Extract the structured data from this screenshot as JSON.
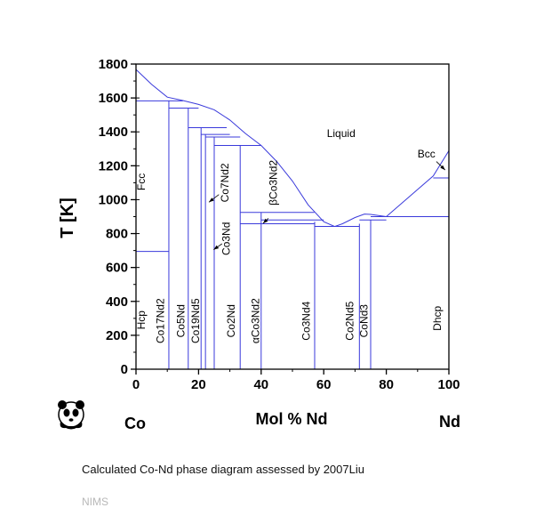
{
  "chart_data": {
    "type": "phase-diagram",
    "title": "",
    "xlabel": "Mol % Nd",
    "ylabel": "T [K]",
    "xlim": [
      0,
      100
    ],
    "ylim": [
      0,
      1800
    ],
    "xticks": [
      "0",
      "20",
      "40",
      "60",
      "80",
      "100"
    ],
    "yticks": [
      "0",
      "200",
      "400",
      "600",
      "800",
      "1000",
      "1200",
      "1400",
      "1600",
      "1800"
    ],
    "left_element": "Co",
    "right_element": "Nd",
    "liquidus": [
      [
        0,
        1768
      ],
      [
        5,
        1680
      ],
      [
        10,
        1605
      ],
      [
        15,
        1585
      ],
      [
        20,
        1562
      ],
      [
        25,
        1530
      ],
      [
        30,
        1470
      ],
      [
        35,
        1390
      ],
      [
        40,
        1320
      ],
      [
        45,
        1225
      ],
      [
        50,
        1110
      ],
      [
        55,
        970
      ],
      [
        60,
        870
      ],
      [
        63.5,
        842
      ],
      [
        66,
        858
      ],
      [
        70,
        895
      ],
      [
        73,
        915
      ],
      [
        75,
        913
      ],
      [
        80,
        900
      ],
      [
        85,
        980
      ],
      [
        90,
        1060
      ],
      [
        95,
        1140
      ],
      [
        100,
        1289
      ]
    ],
    "compounds": [
      {
        "name": "Co17Nd2",
        "x": 10.5,
        "top": 1583
      },
      {
        "name": "Co5Nd",
        "x": 16.7,
        "top": 1540
      },
      {
        "name": "Co19Nd5",
        "x": 20.8,
        "top": 1425
      },
      {
        "name": "Co7Nd2",
        "x": 22.2,
        "top": 1385
      },
      {
        "name": "Co3Nd",
        "x": 25,
        "top": 1370
      },
      {
        "name": "Co2Nd",
        "x": 33.3,
        "top": 1320
      },
      {
        "name": "αCo3Nd2",
        "x": 40,
        "top": 925
      },
      {
        "name": "Co3Nd4",
        "x": 57.1,
        "top": 870
      },
      {
        "name": "Co2Nd5",
        "x": 71.4,
        "top": 858
      },
      {
        "name": "CoNd3",
        "x": 75,
        "top": 880
      }
    ],
    "invariants": [
      {
        "T": 1583,
        "from": 0,
        "to": 15
      },
      {
        "T": 1540,
        "from": 10.5,
        "to": 20
      },
      {
        "T": 1425,
        "from": 16.7,
        "to": 29
      },
      {
        "T": 1385,
        "from": 20.8,
        "to": 30
      },
      {
        "T": 1370,
        "from": 22.2,
        "to": 33.3
      },
      {
        "T": 1320,
        "from": 25,
        "to": 40
      },
      {
        "T": 925,
        "from": 33.3,
        "to": 57
      },
      {
        "T": 880,
        "from": 40,
        "to": 60
      },
      {
        "T": 858,
        "from": 33.3,
        "to": 57.1
      },
      {
        "T": 842,
        "from": 57.1,
        "to": 71.4
      },
      {
        "T": 880,
        "from": 71.4,
        "to": 80
      },
      {
        "T": 900,
        "from": 75,
        "to": 100
      },
      {
        "T": 1128,
        "from": 95,
        "to": 100
      },
      {
        "T": 695,
        "from": 0,
        "to": 10.5
      }
    ],
    "phase_labels": [
      {
        "text": "Liquid",
        "x": 61,
        "y": 1370,
        "rotate": false
      },
      {
        "text": "Bcc",
        "x": 90,
        "y": 1250,
        "rotate": false
      },
      {
        "text": "Fcc",
        "x": 2.8,
        "y": 1105,
        "rotate": true
      },
      {
        "text": "Hcp",
        "x": 2.8,
        "y": 290,
        "rotate": true
      },
      {
        "text": "Dhcp",
        "x": 97.5,
        "y": 300,
        "rotate": true
      },
      {
        "text": "Co7Nd2",
        "x": 29.5,
        "y": 1100,
        "rotate": true
      },
      {
        "text": "Co3Nd",
        "x": 30,
        "y": 770,
        "rotate": true
      },
      {
        "text": "βCo3Nd2",
        "x": 45,
        "y": 1100,
        "rotate": true
      },
      {
        "text": "Co17Nd2",
        "x": 9,
        "y": 285,
        "rotate": true
      },
      {
        "text": "Co5Nd",
        "x": 15.5,
        "y": 285,
        "rotate": true
      },
      {
        "text": "Co19Nd5",
        "x": 20.2,
        "y": 285,
        "rotate": true
      },
      {
        "text": "Co2Nd",
        "x": 31.5,
        "y": 285,
        "rotate": true
      },
      {
        "text": "αCo3Nd2",
        "x": 39.3,
        "y": 285,
        "rotate": true
      },
      {
        "text": "Co3Nd4",
        "x": 55.5,
        "y": 285,
        "rotate": true
      },
      {
        "text": "Co2Nd5",
        "x": 69.5,
        "y": 285,
        "rotate": true
      },
      {
        "text": "CoNd3",
        "x": 74,
        "y": 285,
        "rotate": true
      }
    ],
    "line_color": "#3a3adb",
    "axis_color": "#000000"
  },
  "caption": "Calculated Co-Nd phase diagram assessed by 2007Liu",
  "source": "NIMS",
  "logo_icon": "panda-icon"
}
